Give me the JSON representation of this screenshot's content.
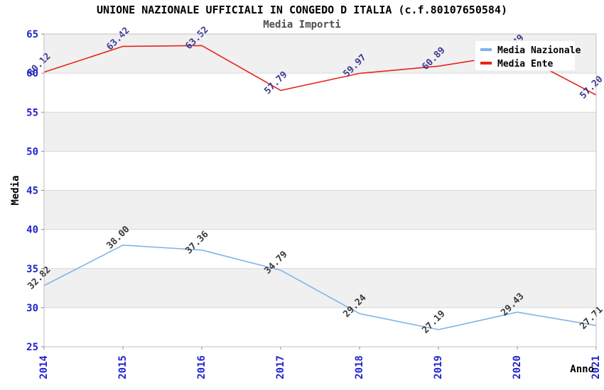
{
  "title": "UNIONE NAZIONALE UFFICIALI IN CONGEDO D ITALIA (c.f.80107650584)",
  "subtitle": "Media Importi",
  "chart_data": {
    "type": "line",
    "x": [
      "2014",
      "2015",
      "2016",
      "2017",
      "2018",
      "2019",
      "2020",
      "2021"
    ],
    "series": [
      {
        "name": "Media Nazionale",
        "color": "#7db4e6",
        "label_color": "#3a3a3a",
        "values": [
          32.82,
          38.0,
          37.36,
          34.79,
          29.24,
          27.19,
          29.43,
          27.71
        ]
      },
      {
        "name": "Media Ente",
        "color": "#e8231a",
        "label_color": "#3b3b94",
        "values": [
          60.12,
          63.42,
          63.52,
          57.79,
          59.97,
          60.89,
          62.49,
          57.2
        ]
      }
    ],
    "xlabel": "Anno",
    "ylabel": "Media",
    "ylim": [
      25,
      65
    ],
    "ytick_step": 5,
    "yticks": [
      25,
      30,
      35,
      40,
      45,
      50,
      55,
      60,
      65
    ],
    "grid": "horizontal-bands",
    "band_gray": "#f0f0f0",
    "band_white": "#ffffff",
    "gridline_color": "#d8d8d8",
    "plot_border_color": "#bfbfbf",
    "tick_label_color": "#2323cc",
    "axis_title_color": "#000000",
    "legend_position": "top-right",
    "legend_bg": "#ffffff",
    "legend_text_color": "#000000"
  }
}
